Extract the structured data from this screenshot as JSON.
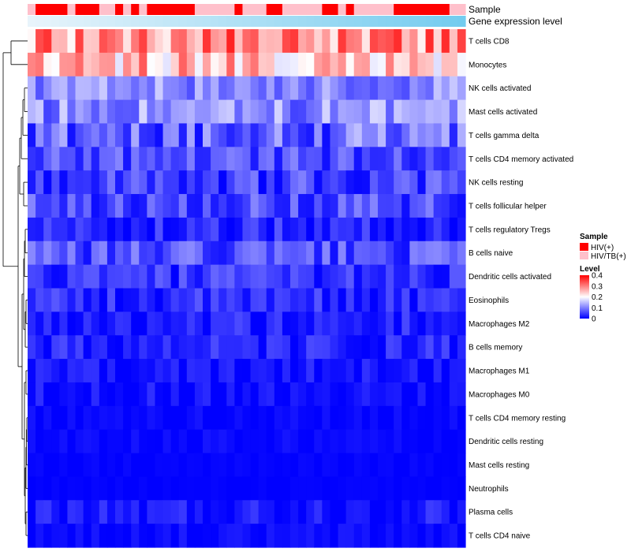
{
  "chart_data": {
    "type": "heatmap",
    "annotation_tracks": [
      "Sample",
      "Gene expression level"
    ],
    "legend": {
      "sample_title": "Sample",
      "sample_items": [
        {
          "label": "HIV(+)",
          "color": "#FF0000"
        },
        {
          "label": "HIV/TB(+)",
          "color": "#FFC0CB"
        }
      ],
      "level_title": "Level",
      "level_ticks": [
        {
          "label": "0.4",
          "value": 0.4
        },
        {
          "label": "0.3",
          "value": 0.3
        },
        {
          "label": "0.2",
          "value": 0.2
        },
        {
          "label": "0.1",
          "value": 0.1
        },
        {
          "label": "0",
          "value": 0
        }
      ]
    },
    "color_scale": {
      "low": "#0000FF",
      "mid": "#FFFFFF",
      "high": "#FF0000",
      "min": 0,
      "mid_value": 0.2,
      "max": 0.4
    },
    "sample_group_colors": {
      "HIV(+)": "#FF0000",
      "HIV/TB(+)": "#FFC0CB"
    },
    "expression_gradient": {
      "low": "#E8F4FB",
      "high": "#74CCEF"
    },
    "samples": [
      "HIV/TB(+)",
      "HIV(+)",
      "HIV(+)",
      "HIV(+)",
      "HIV(+)",
      "HIV/TB(+)",
      "HIV(+)",
      "HIV(+)",
      "HIV(+)",
      "HIV/TB(+)",
      "HIV/TB(+)",
      "HIV(+)",
      "HIV/TB(+)",
      "HIV(+)",
      "HIV/TB(+)",
      "HIV(+)",
      "HIV(+)",
      "HIV(+)",
      "HIV(+)",
      "HIV(+)",
      "HIV(+)",
      "HIV/TB(+)",
      "HIV/TB(+)",
      "HIV/TB(+)",
      "HIV/TB(+)",
      "HIV/TB(+)",
      "HIV(+)",
      "HIV/TB(+)",
      "HIV/TB(+)",
      "HIV/TB(+)",
      "HIV(+)",
      "HIV(+)",
      "HIV/TB(+)",
      "HIV/TB(+)",
      "HIV/TB(+)",
      "HIV/TB(+)",
      "HIV/TB(+)",
      "HIV(+)",
      "HIV(+)",
      "HIV/TB(+)",
      "HIV(+)",
      "HIV/TB(+)",
      "HIV/TB(+)",
      "HIV/TB(+)",
      "HIV/TB(+)",
      "HIV/TB(+)",
      "HIV(+)",
      "HIV(+)",
      "HIV(+)",
      "HIV(+)",
      "HIV(+)",
      "HIV(+)",
      "HIV(+)",
      "HIV/TB(+)",
      "HIV/TB(+)"
    ],
    "rows": [
      {
        "label": "T cells CD8",
        "base": 0.29,
        "spread": 0.09
      },
      {
        "label": "Monocytes",
        "base": 0.25,
        "spread": 0.08
      },
      {
        "label": "NK cells activated",
        "base": 0.11,
        "spread": 0.05
      },
      {
        "label": "Mast cells activated",
        "base": 0.11,
        "spread": 0.06
      },
      {
        "label": "T cells gamma delta",
        "base": 0.08,
        "spread": 0.07
      },
      {
        "label": "T cells CD4 memory activated",
        "base": 0.06,
        "spread": 0.05
      },
      {
        "label": "NK cells resting",
        "base": 0.05,
        "spread": 0.05
      },
      {
        "label": "T cells follicular helper",
        "base": 0.06,
        "spread": 0.05
      },
      {
        "label": "T cells regulatory  Tregs",
        "base": 0.03,
        "spread": 0.04
      },
      {
        "label": "B cells naive",
        "base": 0.06,
        "spread": 0.05
      },
      {
        "label": "Dendritic cells activated",
        "base": 0.04,
        "spread": 0.04
      },
      {
        "label": "Eosinophils",
        "base": 0.03,
        "spread": 0.04
      },
      {
        "label": "Macrophages M2",
        "base": 0.025,
        "spread": 0.035
      },
      {
        "label": "B cells memory",
        "base": 0.025,
        "spread": 0.035
      },
      {
        "label": "Macrophages M1",
        "base": 0.015,
        "spread": 0.025
      },
      {
        "label": "Macrophages M0",
        "base": 0.015,
        "spread": 0.025
      },
      {
        "label": "T cells CD4 memory resting",
        "base": 0.005,
        "spread": 0.012
      },
      {
        "label": "Dendritic cells resting",
        "base": 0.005,
        "spread": 0.012
      },
      {
        "label": "Mast cells resting",
        "base": 0.002,
        "spread": 0.006
      },
      {
        "label": "Neutrophils",
        "base": 0.001,
        "spread": 0.004
      },
      {
        "label": "Plasma cells",
        "base": 0.02,
        "spread": 0.03
      },
      {
        "label": "T cells CD4 naive",
        "base": 0.008,
        "spread": 0.015
      }
    ],
    "xlabel": "",
    "ylabel": ""
  }
}
